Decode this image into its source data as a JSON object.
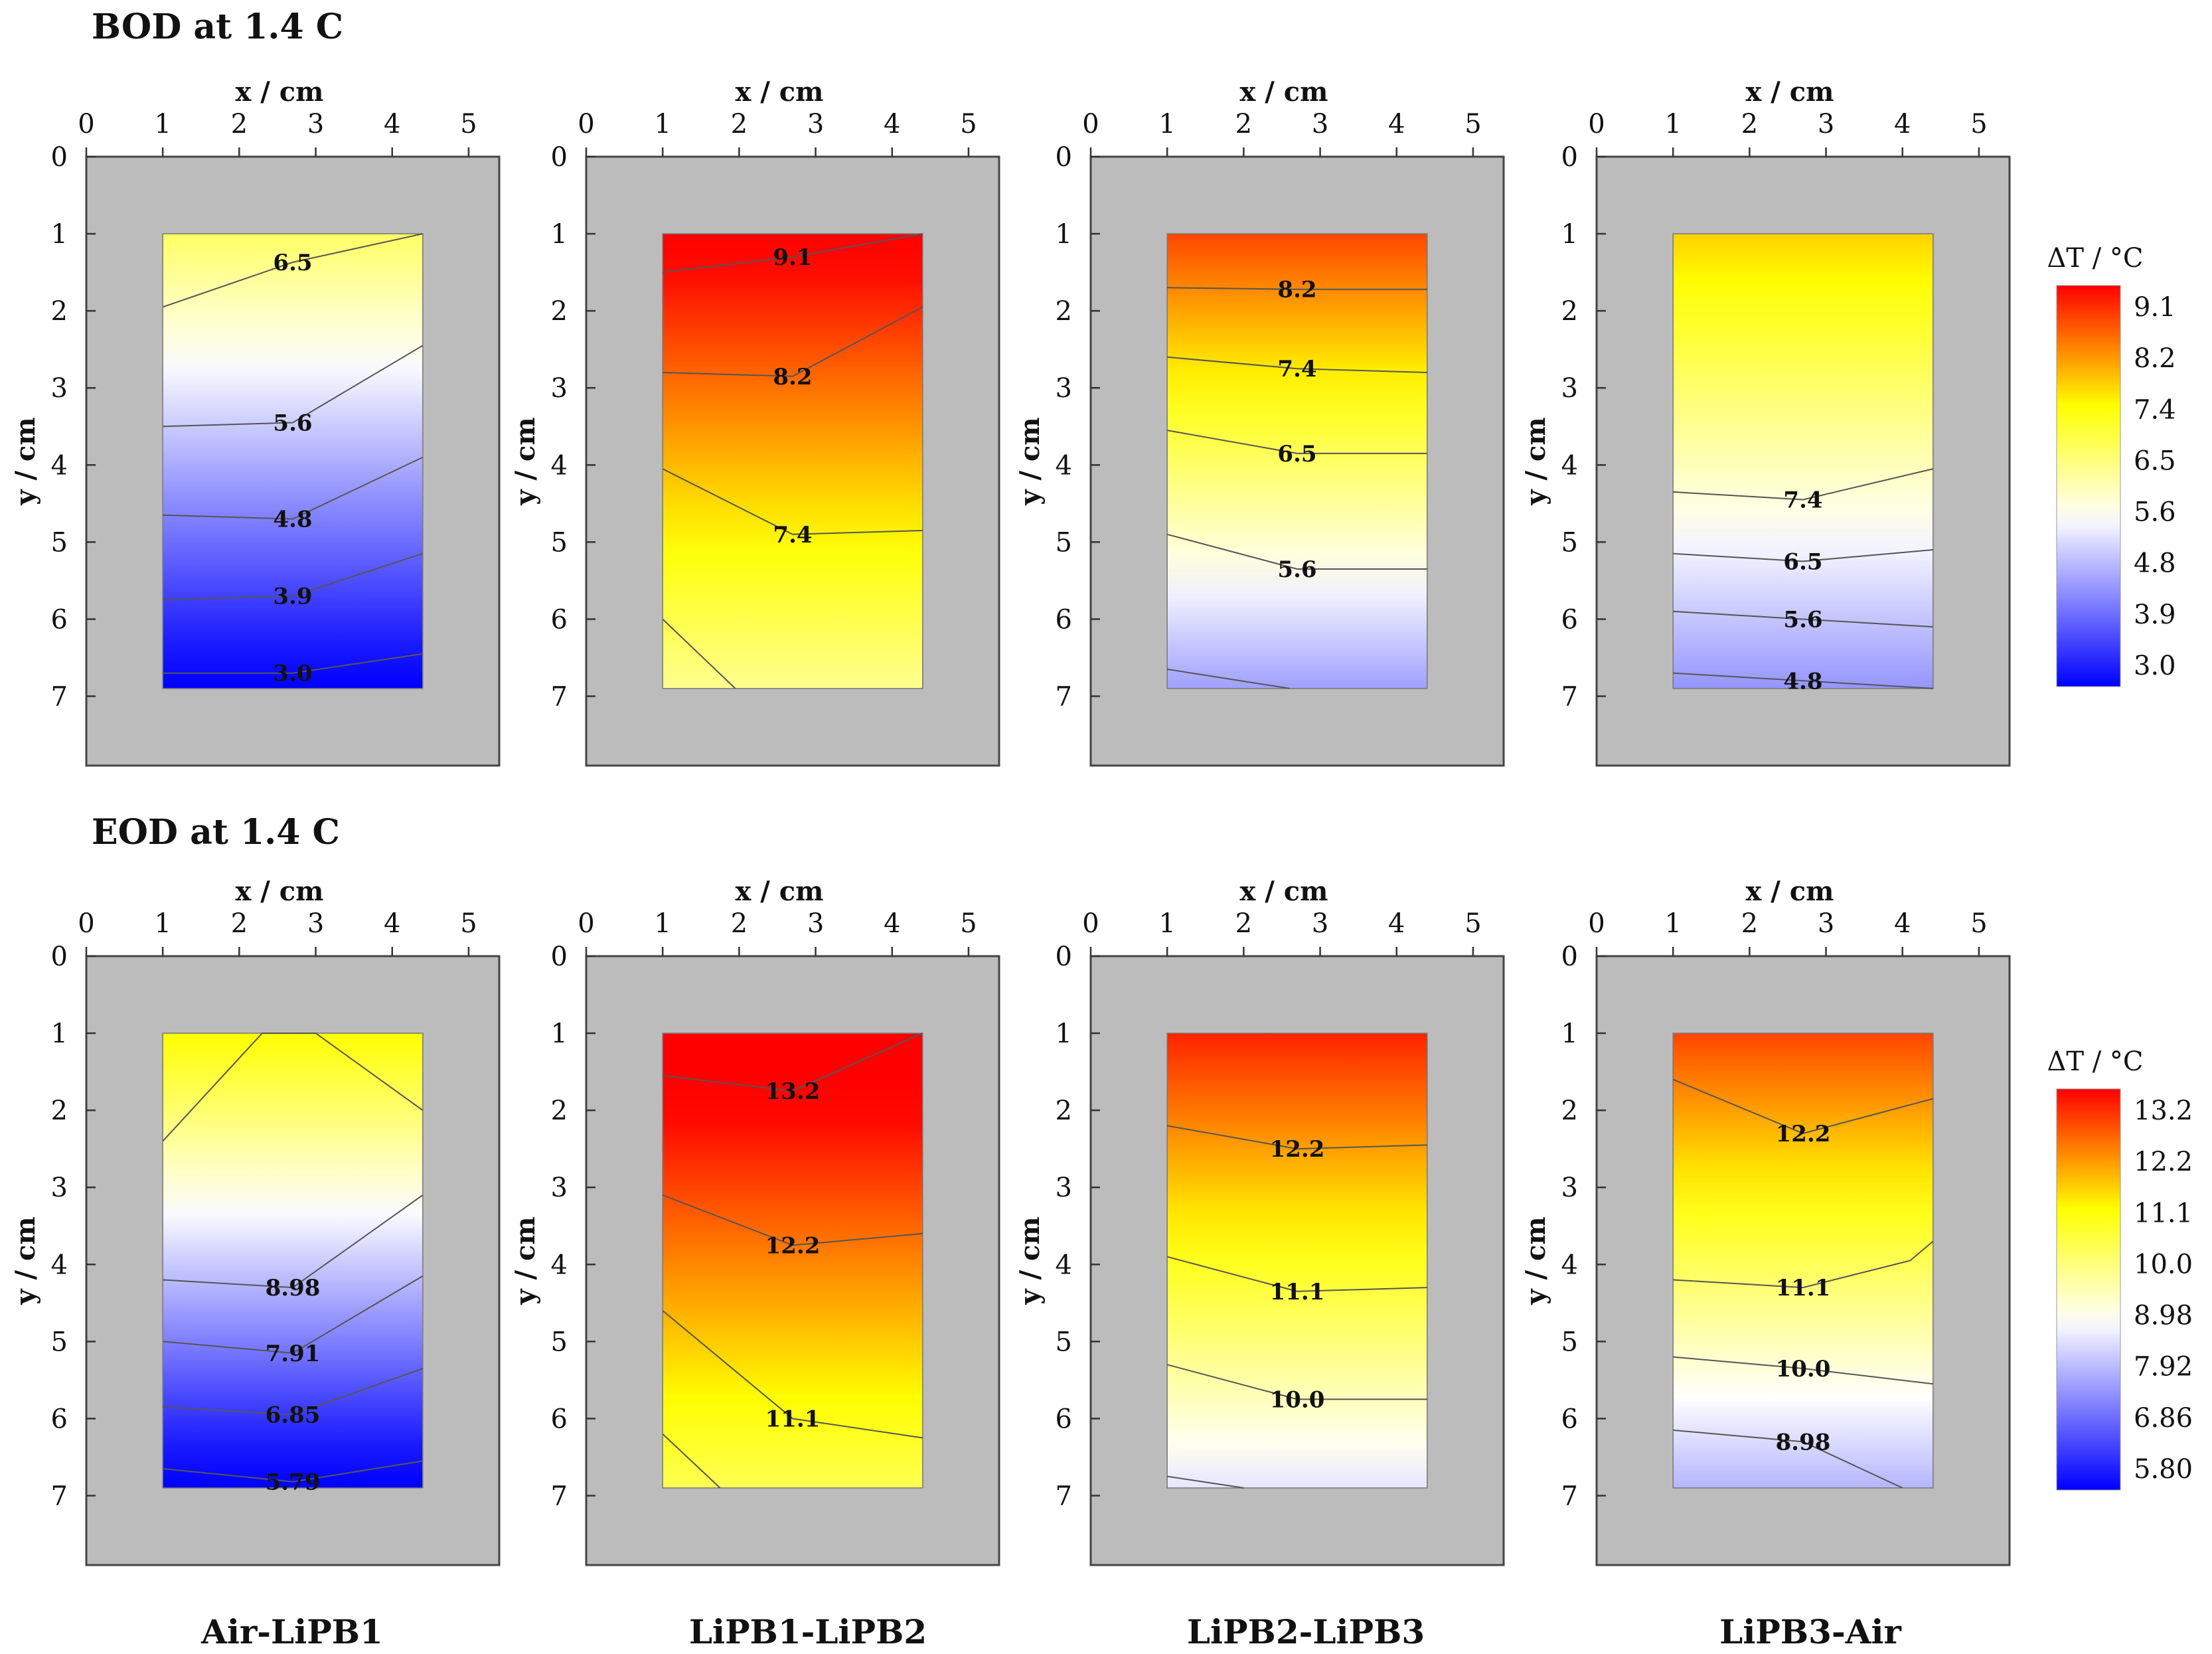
{
  "figure": {
    "rows": [
      {
        "title": "BOD at 1.4 C"
      },
      {
        "title": "EOD at 1.4 C"
      }
    ],
    "column_labels": [
      "Air-LiPB1",
      "LiPB1-LiPB2",
      "LiPB2-LiPB3",
      "LiPB3-Air"
    ]
  },
  "colors": {
    "background": "#ffffff",
    "frame_fill": "#bcbcbc",
    "frame_stroke": "#444444",
    "contour_line": "#555555",
    "colormap": [
      "#0000ff",
      "#ffffff",
      "#ffff00",
      "#ff0000"
    ]
  },
  "chart_data": [
    {
      "type": "heatmap",
      "title": "BOD at 1.4 C",
      "row": 0,
      "xlabel": "x / cm",
      "ylabel": "y / cm",
      "xlim": [
        0,
        5.4
      ],
      "ylim": [
        0,
        7.9
      ],
      "xticks": [
        "0",
        "1",
        "2",
        "3",
        "4",
        "5"
      ],
      "yticks": [
        "0",
        "1",
        "2",
        "3",
        "4",
        "5",
        "6",
        "7"
      ],
      "cell_extent": {
        "x": [
          1,
          4.4
        ],
        "y": [
          1,
          6.9
        ]
      },
      "colorbar": {
        "title": "ΔT / °C",
        "min": 3.0,
        "max": 9.1,
        "ticks": [
          "9.1",
          "8.2",
          "7.4",
          "6.5",
          "5.6",
          "4.8",
          "3.9",
          "3.0"
        ]
      },
      "panels": [
        {
          "name": "Air-LiPB1",
          "top": 6.6,
          "bottom": 2.9,
          "contours": [
            {
              "label": "6.5",
              "label_x": 2.7,
              "label_y": 1.37,
              "points": [
                [
                  1,
                  1.95
                ],
                [
                  2.7,
                  1.37
                ],
                [
                  4.4,
                  1.0
                ]
              ]
            },
            {
              "label": "5.6",
              "label_x": 2.7,
              "label_y": 3.45,
              "points": [
                [
                  1,
                  3.5
                ],
                [
                  2.7,
                  3.45
                ],
                [
                  4.4,
                  2.45
                ]
              ]
            },
            {
              "label": "4.8",
              "label_x": 2.7,
              "label_y": 4.7,
              "points": [
                [
                  1,
                  4.65
                ],
                [
                  2.7,
                  4.7
                ],
                [
                  4.4,
                  3.9
                ]
              ]
            },
            {
              "label": "3.9",
              "label_x": 2.7,
              "label_y": 5.7,
              "points": [
                [
                  1,
                  5.75
                ],
                [
                  2.7,
                  5.7
                ],
                [
                  4.4,
                  5.15
                ]
              ]
            },
            {
              "label": "3.0",
              "label_x": 2.7,
              "label_y": 6.7,
              "points": [
                [
                  1,
                  6.7
                ],
                [
                  2.7,
                  6.7
                ],
                [
                  4.4,
                  6.45
                ]
              ]
            }
          ]
        },
        {
          "name": "LiPB1-LiPB2",
          "top": 9.3,
          "bottom": 6.3,
          "contours": [
            {
              "label": "9.1",
              "label_x": 2.7,
              "label_y": 1.3,
              "points": [
                [
                  1,
                  1.5
                ],
                [
                  2.7,
                  1.3
                ],
                [
                  4.4,
                  1.0
                ]
              ]
            },
            {
              "label": "8.2",
              "label_x": 2.7,
              "label_y": 2.85,
              "points": [
                [
                  1,
                  2.8
                ],
                [
                  2.7,
                  2.85
                ],
                [
                  4.4,
                  1.95
                ]
              ]
            },
            {
              "label": "7.4",
              "label_x": 2.7,
              "label_y": 4.9,
              "points": [
                [
                  1,
                  4.05
                ],
                [
                  2.7,
                  4.9
                ],
                [
                  4.4,
                  4.85
                ]
              ]
            },
            {
              "label": "",
              "label_x": 0,
              "label_y": 0,
              "points": [
                [
                  1,
                  6.0
                ],
                [
                  1.95,
                  6.9
                ]
              ]
            }
          ]
        },
        {
          "name": "LiPB2-LiPB3",
          "top": 8.6,
          "bottom": 4.6,
          "contours": [
            {
              "label": "8.2",
              "label_x": 2.7,
              "label_y": 1.72,
              "points": [
                [
                  1,
                  1.7
                ],
                [
                  2.7,
                  1.72
                ],
                [
                  4.4,
                  1.72
                ]
              ]
            },
            {
              "label": "7.4",
              "label_x": 2.7,
              "label_y": 2.75,
              "points": [
                [
                  1,
                  2.6
                ],
                [
                  2.7,
                  2.75
                ],
                [
                  4.4,
                  2.8
                ]
              ]
            },
            {
              "label": "6.5",
              "label_x": 2.7,
              "label_y": 3.85,
              "points": [
                [
                  1,
                  3.55
                ],
                [
                  2.7,
                  3.85
                ],
                [
                  4.4,
                  3.85
                ]
              ]
            },
            {
              "label": "5.6",
              "label_x": 2.7,
              "label_y": 5.35,
              "points": [
                [
                  1,
                  4.9
                ],
                [
                  2.7,
                  5.35
                ],
                [
                  4.4,
                  5.35
                ]
              ]
            },
            {
              "label": "",
              "label_x": 0,
              "label_y": 0,
              "points": [
                [
                  1,
                  6.65
                ],
                [
                  2.6,
                  6.9
                ]
              ]
            }
          ]
        },
        {
          "name": "LiPB3-Air",
          "top": 7.6,
          "bottom": 4.5,
          "contours": [
            {
              "label": "7.4",
              "label_x": 2.7,
              "label_y": 4.45,
              "points": [
                [
                  1,
                  4.35
                ],
                [
                  2.7,
                  4.45
                ],
                [
                  4.4,
                  4.05
                ]
              ]
            },
            {
              "label": "6.5",
              "label_x": 2.7,
              "label_y": 5.25,
              "points": [
                [
                  1,
                  5.15
                ],
                [
                  2.7,
                  5.25
                ],
                [
                  4.4,
                  5.1
                ]
              ]
            },
            {
              "label": "5.6",
              "label_x": 2.7,
              "label_y": 6.0,
              "points": [
                [
                  1,
                  5.9
                ],
                [
                  2.7,
                  6.0
                ],
                [
                  4.4,
                  6.1
                ]
              ]
            },
            {
              "label": "4.8",
              "label_x": 2.7,
              "label_y": 6.8,
              "points": [
                [
                  1,
                  6.7
                ],
                [
                  2.7,
                  6.8
                ],
                [
                  4.4,
                  6.9
                ]
              ]
            }
          ]
        }
      ]
    },
    {
      "type": "heatmap",
      "title": "EOD at 1.4 C",
      "row": 1,
      "xlabel": "x / cm",
      "ylabel": "y / cm",
      "xlim": [
        0,
        5.4
      ],
      "ylim": [
        0,
        7.9
      ],
      "xticks": [
        "0",
        "1",
        "2",
        "3",
        "4",
        "5"
      ],
      "yticks": [
        "0",
        "1",
        "2",
        "3",
        "4",
        "5",
        "6",
        "7"
      ],
      "cell_extent": {
        "x": [
          1,
          4.4
        ],
        "y": [
          1,
          6.9
        ]
      },
      "colorbar": {
        "title": "ΔT / °C",
        "min": 5.8,
        "max": 13.2,
        "ticks": [
          "13.2",
          "12.2",
          "11.1",
          "10.0",
          "8.98",
          "7.92",
          "6.86",
          "5.80"
        ]
      },
      "panels": [
        {
          "name": "Air-LiPB1",
          "top": 11.0,
          "bottom": 5.6,
          "contours": [
            {
              "label": "",
              "label_x": 0,
              "label_y": 0,
              "points": [
                [
                  1,
                  2.4
                ],
                [
                  2.3,
                  1.0
                ],
                [
                  3.0,
                  1.0
                ],
                [
                  4.4,
                  2.0
                ]
              ]
            },
            {
              "label": "8.98",
              "label_x": 2.7,
              "label_y": 4.3,
              "points": [
                [
                  1,
                  4.2
                ],
                [
                  2.7,
                  4.3
                ],
                [
                  4.4,
                  3.1
                ]
              ]
            },
            {
              "label": "7.91",
              "label_x": 2.7,
              "label_y": 5.15,
              "points": [
                [
                  1,
                  5.0
                ],
                [
                  2.7,
                  5.15
                ],
                [
                  4.4,
                  4.15
                ]
              ]
            },
            {
              "label": "6.85",
              "label_x": 2.7,
              "label_y": 5.95,
              "points": [
                [
                  1,
                  5.85
                ],
                [
                  2.7,
                  5.95
                ],
                [
                  4.4,
                  5.35
                ]
              ]
            },
            {
              "label": "5.79",
              "label_x": 2.7,
              "label_y": 6.82,
              "points": [
                [
                  1,
                  6.65
                ],
                [
                  2.7,
                  6.82
                ],
                [
                  4.4,
                  6.55
                ]
              ]
            }
          ]
        },
        {
          "name": "LiPB1-LiPB2",
          "top": 13.8,
          "bottom": 10.3,
          "contours": [
            {
              "label": "13.2",
              "label_x": 2.7,
              "label_y": 1.75,
              "points": [
                [
                  1,
                  1.55
                ],
                [
                  2.7,
                  1.75
                ],
                [
                  4.4,
                  1.0
                ]
              ]
            },
            {
              "label": "12.2",
              "label_x": 2.7,
              "label_y": 3.75,
              "points": [
                [
                  1,
                  3.1
                ],
                [
                  2.7,
                  3.75
                ],
                [
                  4.4,
                  3.6
                ]
              ]
            },
            {
              "label": "11.1",
              "label_x": 2.7,
              "label_y": 6.0,
              "points": [
                [
                  1,
                  4.6
                ],
                [
                  2.7,
                  6.0
                ],
                [
                  4.4,
                  6.25
                ]
              ]
            },
            {
              "label": "",
              "label_x": 0,
              "label_y": 0,
              "points": [
                [
                  1,
                  6.2
                ],
                [
                  1.75,
                  6.9
                ]
              ]
            }
          ]
        },
        {
          "name": "LiPB2-LiPB3",
          "top": 12.9,
          "bottom": 8.6,
          "contours": [
            {
              "label": "12.2",
              "label_x": 2.7,
              "label_y": 2.5,
              "points": [
                [
                  1,
                  2.2
                ],
                [
                  2.7,
                  2.5
                ],
                [
                  4.4,
                  2.45
                ]
              ]
            },
            {
              "label": "11.1",
              "label_x": 2.7,
              "label_y": 4.35,
              "points": [
                [
                  1,
                  3.9
                ],
                [
                  2.7,
                  4.35
                ],
                [
                  4.4,
                  4.3
                ]
              ]
            },
            {
              "label": "10.0",
              "label_x": 2.7,
              "label_y": 5.75,
              "points": [
                [
                  1,
                  5.3
                ],
                [
                  2.7,
                  5.75
                ],
                [
                  4.4,
                  5.75
                ]
              ]
            },
            {
              "label": "",
              "label_x": 0,
              "label_y": 0,
              "points": [
                [
                  1,
                  6.75
                ],
                [
                  2.0,
                  6.9
                ]
              ]
            }
          ]
        },
        {
          "name": "LiPB3-Air",
          "top": 12.6,
          "bottom": 8.0,
          "contours": [
            {
              "label": "12.2",
              "label_x": 2.7,
              "label_y": 2.3,
              "points": [
                [
                  1,
                  1.6
                ],
                [
                  2.7,
                  2.3
                ],
                [
                  4.4,
                  1.85
                ]
              ]
            },
            {
              "label": "11.1",
              "label_x": 2.7,
              "label_y": 4.3,
              "points": [
                [
                  1,
                  4.2
                ],
                [
                  2.7,
                  4.3
                ],
                [
                  4.1,
                  3.95
                ],
                [
                  4.4,
                  3.7
                ]
              ]
            },
            {
              "label": "10.0",
              "label_x": 2.7,
              "label_y": 5.35,
              "points": [
                [
                  1,
                  5.2
                ],
                [
                  2.7,
                  5.35
                ],
                [
                  4.4,
                  5.55
                ]
              ]
            },
            {
              "label": "8.98",
              "label_x": 2.7,
              "label_y": 6.3,
              "points": [
                [
                  1,
                  6.15
                ],
                [
                  2.7,
                  6.3
                ],
                [
                  4.0,
                  6.9
                ]
              ]
            }
          ]
        }
      ]
    }
  ]
}
